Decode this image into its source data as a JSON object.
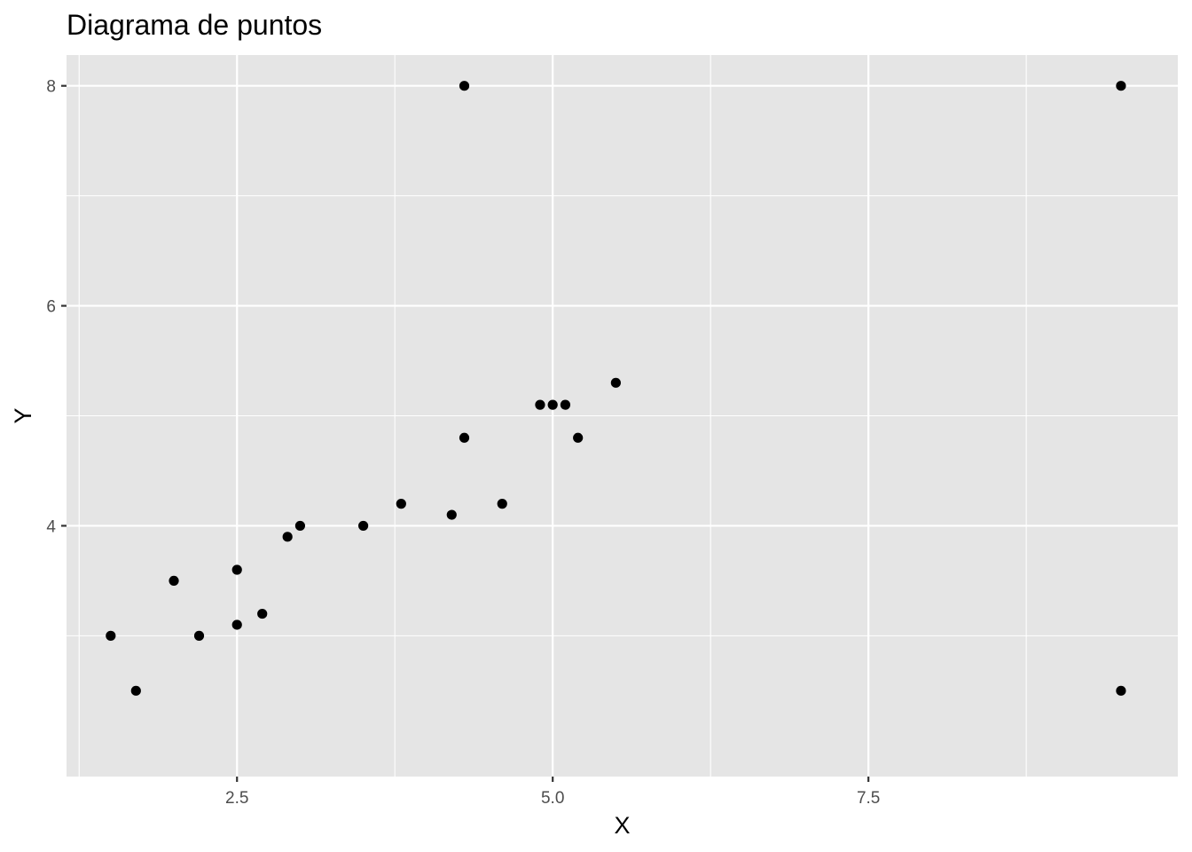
{
  "chart_data": {
    "type": "scatter",
    "title": "Diagrama de puntos",
    "xlabel": "X",
    "ylabel": "Y",
    "xlim": [
      1.15,
      9.95
    ],
    "ylim": [
      1.72,
      8.28
    ],
    "x_ticks": [
      {
        "value": 2.5,
        "label": "2.5"
      },
      {
        "value": 5.0,
        "label": "5.0"
      },
      {
        "value": 7.5,
        "label": "7.5"
      }
    ],
    "x_minor_ticks": [
      1.25,
      3.75,
      6.25,
      8.75
    ],
    "y_ticks": [
      {
        "value": 4,
        "label": "4"
      },
      {
        "value": 6,
        "label": "6"
      },
      {
        "value": 8,
        "label": "8"
      }
    ],
    "y_minor_ticks": [
      3,
      5,
      7
    ],
    "grid": true,
    "legend": "none",
    "colors": {
      "panel_background": "#e5e5e5",
      "grid": "#ffffff",
      "point": "#000000",
      "tick_label": "#4d4d4d",
      "tick_mark": "#333333"
    },
    "points": [
      {
        "x": 1.5,
        "y": 3.0
      },
      {
        "x": 1.7,
        "y": 2.5
      },
      {
        "x": 2.0,
        "y": 3.5
      },
      {
        "x": 2.2,
        "y": 3.0
      },
      {
        "x": 2.5,
        "y": 3.6
      },
      {
        "x": 2.5,
        "y": 3.1
      },
      {
        "x": 2.7,
        "y": 3.2
      },
      {
        "x": 2.9,
        "y": 3.9
      },
      {
        "x": 3.0,
        "y": 4.0
      },
      {
        "x": 3.5,
        "y": 4.0
      },
      {
        "x": 3.8,
        "y": 4.2
      },
      {
        "x": 4.2,
        "y": 4.1
      },
      {
        "x": 4.3,
        "y": 4.8
      },
      {
        "x": 4.3,
        "y": 8.0
      },
      {
        "x": 4.6,
        "y": 4.2
      },
      {
        "x": 4.9,
        "y": 5.1
      },
      {
        "x": 5.0,
        "y": 5.1
      },
      {
        "x": 5.1,
        "y": 5.1
      },
      {
        "x": 5.2,
        "y": 4.8
      },
      {
        "x": 5.5,
        "y": 5.3
      },
      {
        "x": 9.5,
        "y": 8.0
      },
      {
        "x": 9.5,
        "y": 2.5
      }
    ]
  }
}
